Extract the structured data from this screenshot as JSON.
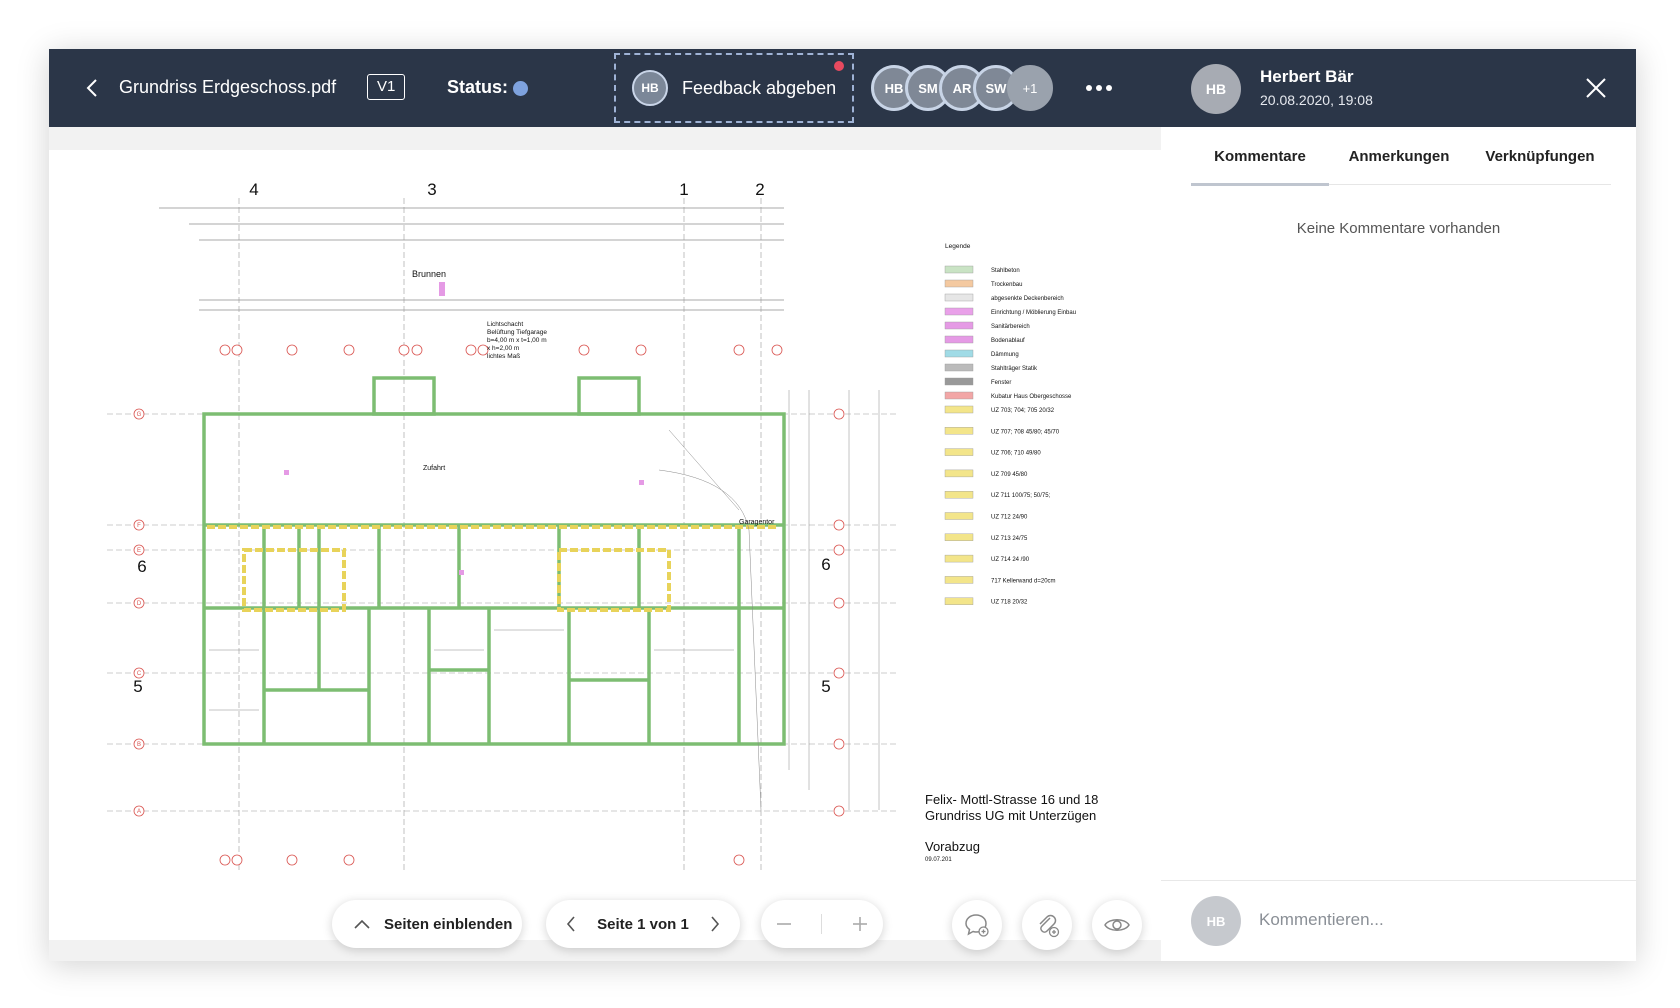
{
  "header": {
    "file_name": "Grundriss Erdgeschoss.pdf",
    "version": "V1",
    "status_label": "Status:",
    "status_color": "#7ea2de",
    "feedback_avatar": "HB",
    "feedback_label": "Feedback abgeben",
    "participants": [
      "HB",
      "SM",
      "AR",
      "SW"
    ],
    "participants_more": "+1"
  },
  "drawing": {
    "axis_numbers_top": [
      "4",
      "3",
      "1",
      "2"
    ],
    "axis_numbers_side": [
      "6",
      "5"
    ],
    "axis_letters": [
      "G",
      "F",
      "E",
      "D",
      "C",
      "B",
      "A"
    ],
    "label_brunnen": "Brunnen",
    "label_lichtschacht": [
      "Lichtschacht",
      "Belüftung Tiefgarage",
      "b=4,00 m x t=1,00 m",
      "x h=2,00 m",
      "lichtes Maß"
    ],
    "label_zufahrt": "Zufahrt",
    "label_garagentor": "Garagentor",
    "legend_title": "Legende",
    "legend_items": [
      {
        "label": "Stahlbeton",
        "color": "#c9e3c4"
      },
      {
        "label": "Trockenbau",
        "color": "#f4c9a0"
      },
      {
        "label": "abgesenkte Deckenbereich",
        "color": "#e6e6e6"
      },
      {
        "label": "Einrichtung / Möblierung Einbau",
        "color": "#e9a0e9"
      },
      {
        "label": "Sanitärbereich",
        "color": "#e59ae5"
      },
      {
        "label": "Bodenablauf",
        "color": "#e59ae5"
      },
      {
        "label": "Dämmung",
        "color": "#a0dbe6"
      },
      {
        "label": "Stahlträger Statik",
        "color": "#bbbbbb"
      },
      {
        "label": "Fenster",
        "color": "#999999"
      },
      {
        "label": "Kubatur Haus Obergeschosse",
        "color": "#f2a6a6"
      },
      {
        "label": "UZ 703; 704; 705   20/32",
        "color": "#f3e58a"
      },
      {
        "label": "UZ 707; 708   45/80; 45/70",
        "color": "#f3e58a"
      },
      {
        "label": "UZ 706; 710   49/80",
        "color": "#f3e58a"
      },
      {
        "label": "UZ 709   45/80",
        "color": "#f3e58a"
      },
      {
        "label": "UZ 711   100/75; 50/75;",
        "color": "#f3e58a"
      },
      {
        "label": "UZ 712   24/90",
        "color": "#f3e58a"
      },
      {
        "label": "UZ 713   24/75",
        "color": "#f3e58a"
      },
      {
        "label": "UZ 714   24 /90",
        "color": "#f3e58a"
      },
      {
        "label": "717  Kellerwand d=20cm",
        "color": "#f3e58a"
      },
      {
        "label": "UZ 718   20/32",
        "color": "#f3e58a"
      }
    ],
    "title_block_line1": "Felix- Mottl-Strasse 16 und 18",
    "title_block_line2": "Grundriss UG mit Unterzügen",
    "title_block_line3": "Vorabzug",
    "title_block_date": "09.07.201"
  },
  "toolbar": {
    "pages_label": "Seiten einblenden",
    "page_indicator": "Seite 1 von 1"
  },
  "panel": {
    "author_initials": "HB",
    "author_name": "Herbert Bär",
    "author_date": "20.08.2020, 19:08",
    "tabs": [
      "Kommentare",
      "Anmerkungen",
      "Verknüpfungen"
    ],
    "empty_text": "Keine Kommentare vorhanden",
    "comment_avatar": "HB",
    "comment_placeholder": "Kommentieren..."
  }
}
